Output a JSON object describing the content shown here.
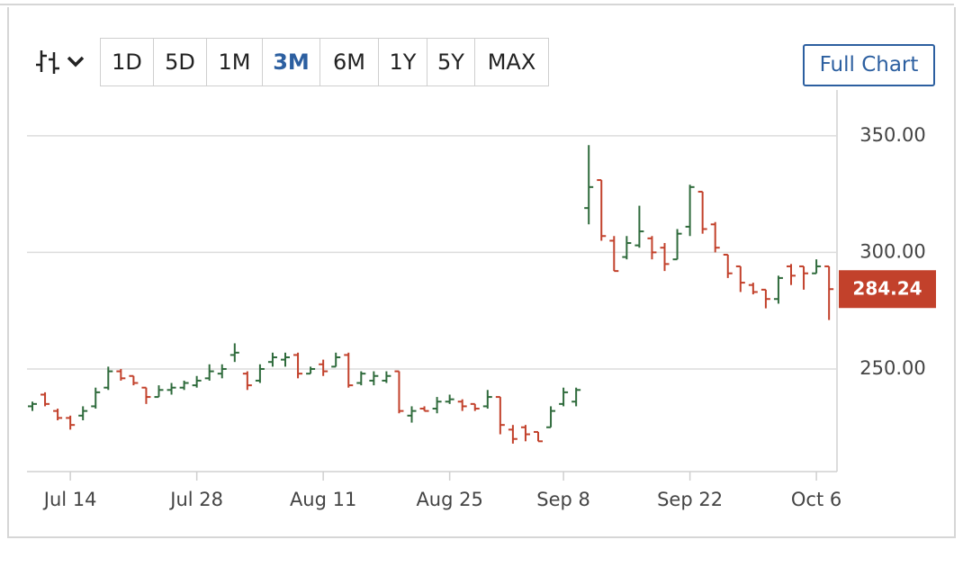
{
  "toolbar": {
    "ranges": [
      {
        "label": "1D",
        "active": false
      },
      {
        "label": "5D",
        "active": false
      },
      {
        "label": "1M",
        "active": false
      },
      {
        "label": "3M",
        "active": true
      },
      {
        "label": "6M",
        "active": false
      },
      {
        "label": "1Y",
        "active": false
      },
      {
        "label": "5Y",
        "active": false
      },
      {
        "label": "MAX",
        "active": false
      }
    ],
    "full_chart": "Full Chart"
  },
  "chart_data": {
    "type": "ohlc",
    "up_color": "#2f6b3c",
    "down_color": "#c2412b",
    "grid": true,
    "categories": [
      null,
      null,
      null,
      "Jul 14",
      null,
      null,
      null,
      null,
      null,
      null,
      null,
      null,
      null,
      "Jul 28",
      null,
      null,
      null,
      null,
      null,
      null,
      null,
      null,
      null,
      "Aug 11",
      null,
      null,
      null,
      null,
      null,
      null,
      null,
      null,
      null,
      "Aug 25",
      null,
      null,
      null,
      null,
      null,
      null,
      null,
      null,
      "Sep 8",
      null,
      null,
      null,
      null,
      null,
      null,
      null,
      null,
      null,
      "Sep 22",
      null,
      null,
      null,
      null,
      null,
      null,
      null,
      null,
      null,
      "Oct 6",
      null
    ],
    "open": [
      234,
      239,
      232,
      229,
      230,
      234,
      242,
      249,
      247,
      242,
      238,
      241,
      242,
      243,
      246,
      248,
      256,
      248,
      245,
      253,
      254,
      256,
      248,
      252,
      251,
      256,
      244,
      245,
      245,
      249,
      230,
      233,
      233,
      236,
      236,
      235,
      234,
      238,
      224,
      225,
      223,
      225,
      235,
      236,
      319,
      331,
      305,
      298,
      303,
      306,
      302,
      297,
      311,
      326,
      312,
      299,
      294,
      286,
      284,
      280,
      294,
      294,
      291,
      294
    ],
    "high": [
      236,
      240,
      233,
      230,
      234,
      242,
      251,
      250,
      247,
      242,
      243,
      244,
      245,
      247,
      252,
      252,
      261,
      249,
      252,
      257,
      257,
      257,
      251,
      254,
      257,
      257,
      249,
      249,
      249,
      249,
      234,
      234,
      238,
      239,
      237,
      235,
      241,
      238,
      226,
      226,
      223,
      234,
      242,
      242,
      346,
      331,
      307,
      307,
      320,
      307,
      304,
      310,
      329,
      326,
      313,
      299,
      294,
      287,
      284,
      290,
      295,
      294,
      297,
      294
    ],
    "low": [
      232,
      234,
      228,
      224,
      228,
      233,
      241,
      245,
      243,
      235,
      238,
      239,
      241,
      242,
      245,
      246,
      253,
      241,
      244,
      251,
      251,
      246,
      248,
      247,
      251,
      242,
      243,
      243,
      244,
      231,
      227,
      232,
      231,
      235,
      232,
      232,
      233,
      222,
      218,
      219,
      219,
      225,
      234,
      234,
      312,
      305,
      292,
      297,
      302,
      297,
      292,
      297,
      307,
      308,
      300,
      289,
      283,
      282,
      276,
      278,
      286,
      284,
      291,
      271
    ],
    "close": [
      235,
      235,
      229,
      226,
      232,
      240,
      249,
      246,
      244,
      238,
      241,
      242,
      244,
      245,
      249,
      250,
      257,
      243,
      250,
      255,
      255,
      248,
      250,
      249,
      255,
      243,
      248,
      247,
      247,
      232,
      232,
      232,
      236,
      237,
      234,
      233,
      238,
      226,
      220,
      222,
      219,
      232,
      240,
      241,
      328,
      307,
      292,
      304,
      309,
      300,
      295,
      308,
      328,
      310,
      302,
      291,
      287,
      283,
      280,
      289,
      290,
      291,
      294,
      284.24
    ],
    "ylim": [
      206,
      370
    ],
    "yticks": [
      {
        "value": 250,
        "label": "250.00"
      },
      {
        "value": 300,
        "label": "300.00"
      },
      {
        "value": 350,
        "label": "350.00"
      }
    ]
  }
}
